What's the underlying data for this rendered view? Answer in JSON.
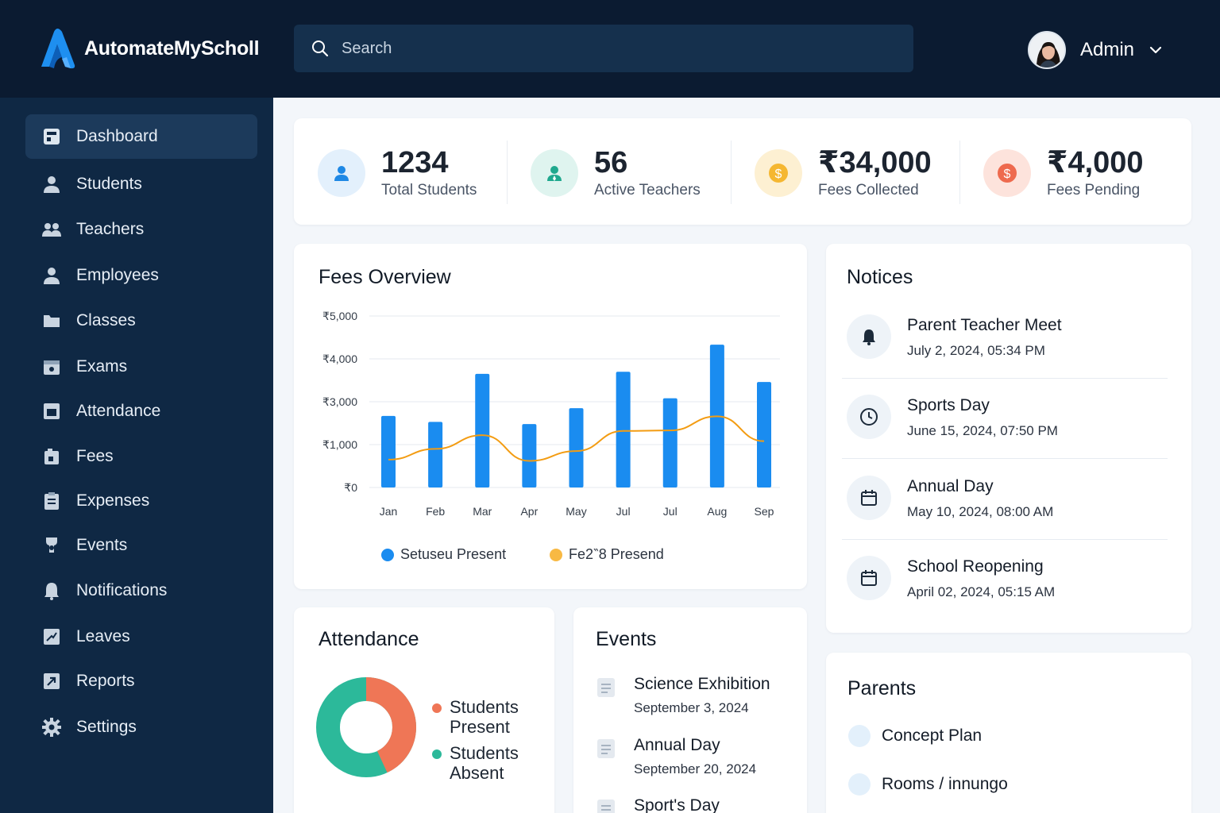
{
  "brand": {
    "name": "AutomateMyScholl"
  },
  "search": {
    "placeholder": "Search"
  },
  "user": {
    "name": "Admin"
  },
  "sidebar": {
    "items": [
      {
        "label": "Dashboard",
        "icon": "dashboard-icon",
        "active": true
      },
      {
        "label": "Students",
        "icon": "user-icon"
      },
      {
        "label": "Teachers",
        "icon": "users-icon"
      },
      {
        "label": "Employees",
        "icon": "user-icon"
      },
      {
        "label": "Classes",
        "icon": "folder-icon"
      },
      {
        "label": "Exams",
        "icon": "calendar-icon"
      },
      {
        "label": "Attendance",
        "icon": "attendance-icon"
      },
      {
        "label": "Fees",
        "icon": "fees-icon"
      },
      {
        "label": "Expenses",
        "icon": "clipboard-icon"
      },
      {
        "label": "Events",
        "icon": "event-icon"
      },
      {
        "label": "Notifications",
        "icon": "bell-icon"
      },
      {
        "label": "Leaves",
        "icon": "leaves-icon"
      },
      {
        "label": "Reports",
        "icon": "reports-icon"
      },
      {
        "label": "Settings",
        "icon": "gear-icon"
      }
    ]
  },
  "stats": [
    {
      "value": "1234",
      "label": "Total Students",
      "color": "#1e88e5",
      "bg": "#e3f0fc",
      "icon": "student-icon"
    },
    {
      "value": "56",
      "label": "Active Teachers",
      "color": "#1fa88e",
      "bg": "#dff4ef",
      "icon": "teacher-icon"
    },
    {
      "value": "₹34,000",
      "label": "Fees Collected",
      "color": "#f5b731",
      "bg": "#fdf0d2",
      "icon": "dollar-icon"
    },
    {
      "value": "₹4,000",
      "label": "Fees Pending",
      "color": "#ee6a4e",
      "bg": "#fde3dc",
      "icon": "dollar-icon"
    }
  ],
  "fees_overview": {
    "title": "Fees Overview"
  },
  "chart_data": {
    "type": "bar",
    "categories": [
      "Jan",
      "Feb",
      "Mar",
      "Apr",
      "May",
      "Jul",
      "Jul",
      "Aug",
      "Sep"
    ],
    "y_tick_labels": [
      "₹5,000",
      "₹4,000",
      "₹3,000",
      "₹1,000",
      "₹0"
    ],
    "series": [
      {
        "name": "Setuseu Present",
        "type": "bar",
        "color": "#1a8cf0",
        "values": [
          1.67,
          1.53,
          2.65,
          1.48,
          1.85,
          2.7,
          2.08,
          3.33,
          2.46
        ]
      },
      {
        "name": "Fe2‶8 Presend",
        "type": "line",
        "color": "#f39c12",
        "values": [
          0.65,
          0.9,
          1.22,
          0.62,
          0.85,
          1.32,
          1.33,
          1.66,
          1.08
        ]
      }
    ],
    "legend_position": "bottom",
    "grid": true
  },
  "notices": {
    "title": "Notices",
    "items": [
      {
        "title": "Parent Teacher Meet",
        "time": "July 2, 2024, 05:34 PM",
        "icon": "bell-icon"
      },
      {
        "title": "Sports Day",
        "time": "June 15, 2024, 07:50 PM",
        "icon": "clock-icon"
      },
      {
        "title": "Annual Day",
        "time": "May 10, 2024, 08:00 AM",
        "icon": "calendar-icon"
      },
      {
        "title": "School Reopening",
        "time": "April 02, 2024, 05:15 AM",
        "icon": "calendar-icon"
      }
    ]
  },
  "attendance": {
    "title": "Attendance",
    "legend": [
      {
        "label": "Students Present",
        "color": "#ef7656"
      },
      {
        "label": "Students Absent",
        "color": "#2cb99a"
      }
    ],
    "present_fraction": 0.43
  },
  "events": {
    "title": "Events",
    "items": [
      {
        "title": "Science Exhibition",
        "date": "September 3, 2024"
      },
      {
        "title": "Annual Day",
        "date": "September 20, 2024"
      },
      {
        "title": "Sport's Day",
        "date": ""
      }
    ]
  },
  "parents": {
    "title": "Parents",
    "items": [
      {
        "label": "Concept Plan"
      },
      {
        "label": "Rooms / innungo"
      }
    ]
  }
}
